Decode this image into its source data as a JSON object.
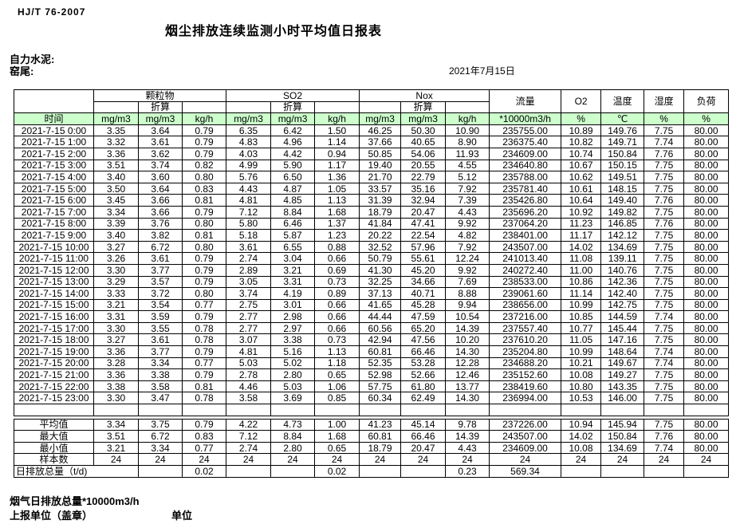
{
  "page": {
    "standard": "HJ/T  76-2007",
    "title": "烟尘排放连续监测小时平均值日报表",
    "company": "自力水泥:",
    "station": "窑尾:",
    "date": "2021年7月15日"
  },
  "table": {
    "col_headers": {
      "time": "时间",
      "particulate": "颗粒物",
      "so2": "SO2",
      "nox": "Nox",
      "converted": "折算",
      "flow": "流量",
      "o2": "O2",
      "temperature": "温度",
      "humidity": "湿度",
      "load": "负荷"
    },
    "units": [
      "mg/m3",
      "mg/m3",
      "kg/h",
      "mg/m3",
      "mg/m3",
      "kg/h",
      "mg/m3",
      "mg/m3",
      "kg/h",
      "*10000m3/h",
      "%",
      "℃",
      "%",
      "%"
    ],
    "rows": [
      {
        "time": "2021-7-15 0:00",
        "values": [
          "3.35",
          "3.64",
          "0.79",
          "6.35",
          "6.42",
          "1.50",
          "46.25",
          "50.30",
          "10.90",
          "235755.00",
          "10.89",
          "149.76",
          "7.75",
          "80.00"
        ]
      },
      {
        "time": "2021-7-15 1:00",
        "values": [
          "3.32",
          "3.61",
          "0.79",
          "4.83",
          "4.96",
          "1.14",
          "37.66",
          "40.65",
          "8.90",
          "236375.40",
          "10.82",
          "149.71",
          "7.74",
          "80.00"
        ]
      },
      {
        "time": "2021-7-15 2:00",
        "values": [
          "3.36",
          "3.62",
          "0.79",
          "4.03",
          "4.42",
          "0.94",
          "50.85",
          "54.06",
          "11.93",
          "234609.00",
          "10.74",
          "150.84",
          "7.76",
          "80.00"
        ]
      },
      {
        "time": "2021-7-15 3:00",
        "values": [
          "3.51",
          "3.74",
          "0.82",
          "4.99",
          "5.90",
          "1.17",
          "19.40",
          "20.55",
          "4.55",
          "234640.80",
          "10.67",
          "150.15",
          "7.75",
          "80.00"
        ]
      },
      {
        "time": "2021-7-15 4:00",
        "values": [
          "3.40",
          "3.60",
          "0.80",
          "5.76",
          "6.50",
          "1.36",
          "21.70",
          "22.79",
          "5.12",
          "235788.00",
          "10.62",
          "149.51",
          "7.75",
          "80.00"
        ]
      },
      {
        "time": "2021-7-15 5:00",
        "values": [
          "3.50",
          "3.64",
          "0.83",
          "4.43",
          "4.87",
          "1.05",
          "33.57",
          "35.16",
          "7.92",
          "235781.40",
          "10.61",
          "148.15",
          "7.75",
          "80.00"
        ]
      },
      {
        "time": "2021-7-15 6:00",
        "values": [
          "3.45",
          "3.66",
          "0.81",
          "4.81",
          "4.85",
          "1.13",
          "31.39",
          "32.94",
          "7.39",
          "235426.80",
          "10.64",
          "149.40",
          "7.76",
          "80.00"
        ]
      },
      {
        "time": "2021-7-15 7:00",
        "values": [
          "3.34",
          "3.66",
          "0.79",
          "7.12",
          "8.84",
          "1.68",
          "18.79",
          "20.47",
          "4.43",
          "235696.20",
          "10.92",
          "149.82",
          "7.75",
          "80.00"
        ]
      },
      {
        "time": "2021-7-15 8:00",
        "values": [
          "3.39",
          "3.76",
          "0.80",
          "5.80",
          "6.46",
          "1.37",
          "41.84",
          "47.41",
          "9.92",
          "237064.20",
          "11.23",
          "146.85",
          "7.76",
          "80.00"
        ]
      },
      {
        "time": "2021-7-15 9:00",
        "values": [
          "3.40",
          "3.82",
          "0.81",
          "5.18",
          "5.87",
          "1.23",
          "20.22",
          "22.54",
          "4.82",
          "238401.00",
          "11.17",
          "142.12",
          "7.75",
          "80.00"
        ]
      },
      {
        "time": "2021-7-15 10:00",
        "values": [
          "3.27",
          "6.72",
          "0.80",
          "3.61",
          "6.55",
          "0.88",
          "32.52",
          "57.96",
          "7.92",
          "243507.00",
          "14.02",
          "134.69",
          "7.75",
          "80.00"
        ]
      },
      {
        "time": "2021-7-15 11:00",
        "values": [
          "3.26",
          "3.61",
          "0.79",
          "2.74",
          "3.04",
          "0.66",
          "50.79",
          "55.61",
          "12.24",
          "241013.40",
          "11.08",
          "139.11",
          "7.75",
          "80.00"
        ]
      },
      {
        "time": "2021-7-15 12:00",
        "values": [
          "3.30",
          "3.77",
          "0.79",
          "2.89",
          "3.21",
          "0.69",
          "41.30",
          "45.20",
          "9.92",
          "240272.40",
          "11.00",
          "140.76",
          "7.75",
          "80.00"
        ]
      },
      {
        "time": "2021-7-15 13:00",
        "values": [
          "3.29",
          "3.57",
          "0.79",
          "3.05",
          "3.31",
          "0.73",
          "32.25",
          "34.66",
          "7.69",
          "238533.00",
          "10.86",
          "142.36",
          "7.75",
          "80.00"
        ]
      },
      {
        "time": "2021-7-15 14:00",
        "values": [
          "3.33",
          "3.72",
          "0.80",
          "3.74",
          "4.19",
          "0.89",
          "37.13",
          "40.71",
          "8.88",
          "239061.60",
          "11.14",
          "142.40",
          "7.75",
          "80.00"
        ]
      },
      {
        "time": "2021-7-15 15:00",
        "values": [
          "3.21",
          "3.54",
          "0.77",
          "2.75",
          "3.01",
          "0.66",
          "41.65",
          "45.28",
          "9.94",
          "238656.00",
          "10.99",
          "142.75",
          "7.75",
          "80.00"
        ]
      },
      {
        "time": "2021-7-15 16:00",
        "values": [
          "3.31",
          "3.59",
          "0.79",
          "2.77",
          "2.98",
          "0.66",
          "44.44",
          "47.59",
          "10.54",
          "237216.00",
          "10.85",
          "144.59",
          "7.74",
          "80.00"
        ]
      },
      {
        "time": "2021-7-15 17:00",
        "values": [
          "3.30",
          "3.55",
          "0.78",
          "2.77",
          "2.97",
          "0.66",
          "60.56",
          "65.20",
          "14.39",
          "237557.40",
          "10.77",
          "145.44",
          "7.75",
          "80.00"
        ]
      },
      {
        "time": "2021-7-15 18:00",
        "values": [
          "3.27",
          "3.61",
          "0.78",
          "3.07",
          "3.38",
          "0.73",
          "42.94",
          "47.56",
          "10.20",
          "237610.20",
          "11.05",
          "147.16",
          "7.75",
          "80.00"
        ]
      },
      {
        "time": "2021-7-15 19:00",
        "values": [
          "3.36",
          "3.77",
          "0.79",
          "4.81",
          "5.16",
          "1.13",
          "60.81",
          "66.46",
          "14.30",
          "235204.80",
          "10.99",
          "148.64",
          "7.74",
          "80.00"
        ]
      },
      {
        "time": "2021-7-15 20:00",
        "values": [
          "3.28",
          "3.34",
          "0.77",
          "5.03",
          "5.02",
          "1.18",
          "52.35",
          "53.28",
          "12.28",
          "234688.20",
          "10.21",
          "149.67",
          "7.74",
          "80.00"
        ]
      },
      {
        "time": "2021-7-15 21:00",
        "values": [
          "3.36",
          "3.38",
          "0.79",
          "2.78",
          "2.80",
          "0.65",
          "52.98",
          "52.66",
          "12.46",
          "235152.60",
          "10.08",
          "149.27",
          "7.75",
          "80.00"
        ]
      },
      {
        "time": "2021-7-15 22:00",
        "values": [
          "3.38",
          "3.58",
          "0.81",
          "4.46",
          "5.03",
          "1.06",
          "57.75",
          "61.80",
          "13.77",
          "238419.60",
          "10.80",
          "143.35",
          "7.75",
          "80.00"
        ]
      },
      {
        "time": "2021-7-15 23:00",
        "values": [
          "3.30",
          "3.47",
          "0.78",
          "3.58",
          "3.69",
          "0.85",
          "60.34",
          "62.49",
          "14.30",
          "236994.00",
          "10.53",
          "146.00",
          "7.75",
          "80.00"
        ]
      }
    ],
    "stats": [
      {
        "label": "平均值",
        "values": [
          "3.34",
          "3.75",
          "0.79",
          "4.22",
          "4.73",
          "1.00",
          "41.23",
          "45.14",
          "9.78",
          "237226.00",
          "10.94",
          "145.94",
          "7.75",
          "80.00"
        ]
      },
      {
        "label": "最大值",
        "values": [
          "3.51",
          "6.72",
          "0.83",
          "7.12",
          "8.84",
          "1.68",
          "60.81",
          "66.46",
          "14.39",
          "243507.00",
          "14.02",
          "150.84",
          "7.76",
          "80.00"
        ]
      },
      {
        "label": "最小值",
        "values": [
          "3.21",
          "3.34",
          "0.77",
          "2.74",
          "2.80",
          "0.65",
          "18.79",
          "20.47",
          "4.43",
          "234609.00",
          "10.08",
          "134.69",
          "7.74",
          "80.00"
        ]
      },
      {
        "label": "样本数",
        "values": [
          "24",
          "24",
          "24",
          "24",
          "24",
          "24",
          "24",
          "24",
          "24",
          "24",
          "24",
          "24",
          "24",
          "24"
        ]
      }
    ],
    "total_row": {
      "label": "日排放总量（t/d)",
      "values": [
        "",
        "0.02",
        "",
        "",
        "0.02",
        "",
        "",
        "0.23",
        "569.34",
        "",
        "",
        "",
        ""
      ]
    }
  },
  "footer": {
    "note": "烟气日排放总量*10000m3/h",
    "report_unit": "上报单位（盖章）",
    "unit": "单位"
  },
  "colors": {
    "header_green": "#ccffcc"
  }
}
